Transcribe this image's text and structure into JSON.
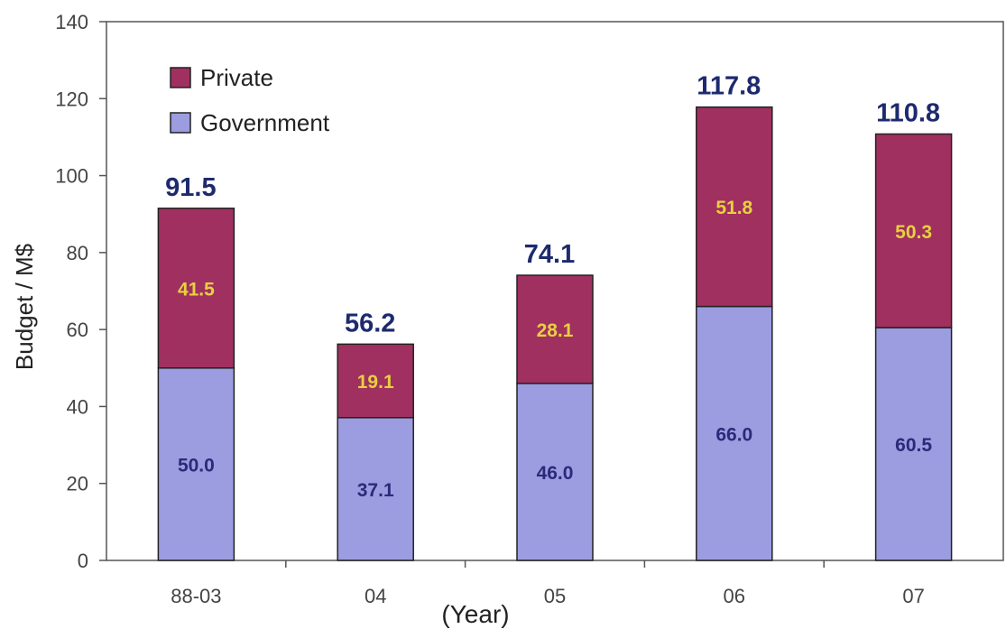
{
  "chart_data": {
    "type": "bar",
    "stacked": true,
    "categories": [
      "88-03",
      "04",
      "05",
      "06",
      "07"
    ],
    "series": [
      {
        "name": "Government",
        "values": [
          50.0,
          37.1,
          46.0,
          66.0,
          60.5
        ],
        "labels": [
          "50.0",
          "37.1",
          "46.0",
          "66.0",
          "60.5"
        ],
        "color": "#9c9ce0",
        "label_color": "#2a2a7a"
      },
      {
        "name": "Private",
        "values": [
          41.5,
          19.1,
          28.1,
          51.8,
          50.3
        ],
        "labels": [
          "41.5",
          "19.1",
          "28.1",
          "51.8",
          "50.3"
        ],
        "color": "#a0305f",
        "label_color": "#e8d040"
      }
    ],
    "totals": [
      "91.5",
      "56.2",
      "74.1",
      "117.8",
      "110.8"
    ],
    "total_label_color": "#1e2a6e",
    "xlabel": "(Year)",
    "ylabel": "Budget / M$",
    "ylim": [
      0,
      140
    ],
    "yticks": [
      0,
      20,
      40,
      60,
      80,
      100,
      120,
      140
    ],
    "grid": false,
    "legend": {
      "position": "top-left",
      "entries": [
        "Private",
        "Government"
      ]
    }
  }
}
